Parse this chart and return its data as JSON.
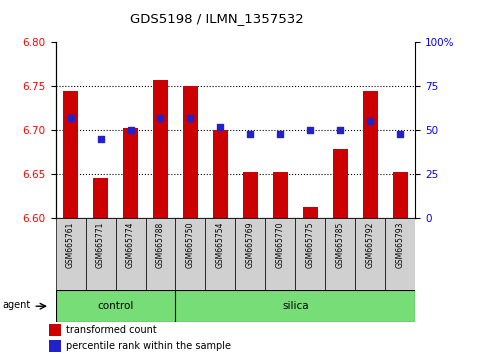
{
  "title": "GDS5198 / ILMN_1357532",
  "samples": [
    "GSM665761",
    "GSM665771",
    "GSM665774",
    "GSM665788",
    "GSM665750",
    "GSM665754",
    "GSM665769",
    "GSM665770",
    "GSM665775",
    "GSM665785",
    "GSM665792",
    "GSM665793"
  ],
  "groups": [
    "control",
    "control",
    "control",
    "control",
    "silica",
    "silica",
    "silica",
    "silica",
    "silica",
    "silica",
    "silica",
    "silica"
  ],
  "red_values": [
    6.745,
    6.645,
    6.702,
    6.757,
    6.75,
    6.7,
    6.652,
    6.652,
    6.612,
    6.678,
    6.745,
    6.652
  ],
  "blue_values": [
    57,
    45,
    50,
    57,
    57,
    52,
    48,
    48,
    50,
    50,
    55,
    48
  ],
  "ylim": [
    6.6,
    6.8
  ],
  "y2lim": [
    0,
    100
  ],
  "yticks": [
    6.6,
    6.65,
    6.7,
    6.75,
    6.8
  ],
  "y2ticks": [
    0,
    25,
    50,
    75,
    100
  ],
  "bar_color": "#cc0000",
  "dot_color": "#2222cc",
  "bar_width": 0.5,
  "group_color": "#77dd77",
  "n_control": 4,
  "n_silica": 8
}
